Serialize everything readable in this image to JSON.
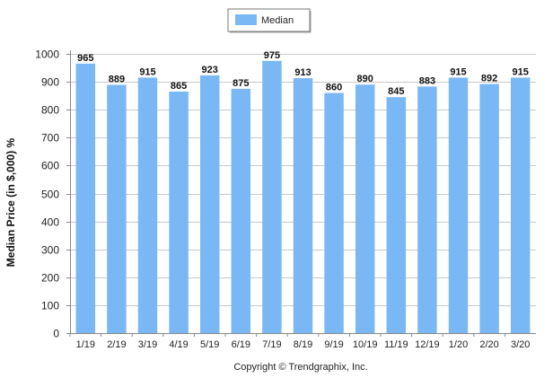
{
  "chart_data": {
    "type": "bar",
    "categories": [
      "1/19",
      "2/19",
      "3/19",
      "4/19",
      "5/19",
      "6/19",
      "7/19",
      "8/19",
      "9/19",
      "10/19",
      "11/19",
      "12/19",
      "1/20",
      "2/20",
      "3/20"
    ],
    "series": [
      {
        "name": "Median",
        "values": [
          965,
          889,
          915,
          865,
          923,
          875,
          975,
          913,
          860,
          890,
          845,
          883,
          915,
          892,
          915
        ],
        "color": "#7ab8f5"
      }
    ],
    "ylabel": "Median Price (in $,000) %",
    "xlabel": "",
    "ylim": [
      0,
      1000
    ],
    "yticks": [
      0,
      100,
      200,
      300,
      400,
      500,
      600,
      700,
      800,
      900,
      1000
    ],
    "grid": true,
    "legend_position": "top-center",
    "data_labels": true
  },
  "footer": {
    "copyright": "Copyright © Trendgraphix, Inc."
  },
  "colors": {
    "bar": "#7ab8f5",
    "grid": "#c8c8c8",
    "axis": "#888888"
  }
}
